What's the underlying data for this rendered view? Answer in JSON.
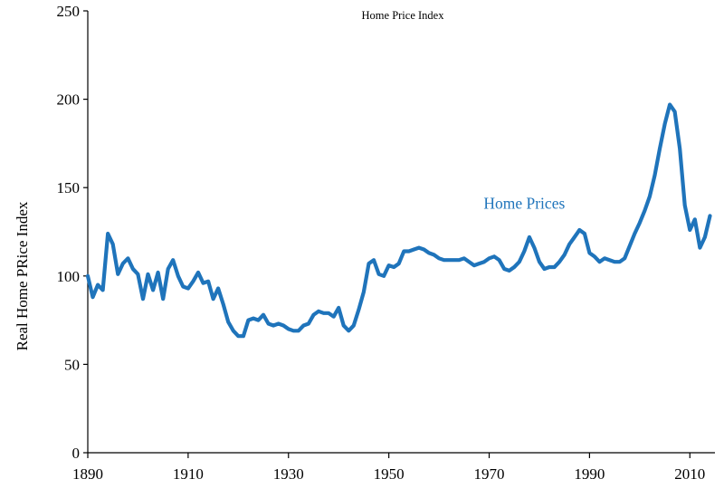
{
  "chart_data": {
    "type": "line",
    "title": "Home Price Index",
    "xlabel": "",
    "ylabel": "Real Home PRice Index",
    "xlim": [
      1890,
      2015
    ],
    "ylim": [
      0,
      250
    ],
    "xticks": [
      1890,
      1910,
      1930,
      1950,
      1970,
      1990,
      2010
    ],
    "yticks": [
      0,
      50,
      100,
      150,
      200,
      250
    ],
    "grid": false,
    "legend": "none",
    "annotations": [
      {
        "text": "Home Prices",
        "x": 1977,
        "y": 138
      }
    ],
    "colors": {
      "series": "#1f74bb",
      "axis": "#000000"
    },
    "series": [
      {
        "name": "Home Prices",
        "x": [
          1890,
          1891,
          1892,
          1893,
          1894,
          1895,
          1896,
          1897,
          1898,
          1899,
          1900,
          1901,
          1902,
          1903,
          1904,
          1905,
          1906,
          1907,
          1908,
          1909,
          1910,
          1911,
          1912,
          1913,
          1914,
          1915,
          1916,
          1917,
          1918,
          1919,
          1920,
          1921,
          1922,
          1923,
          1924,
          1925,
          1926,
          1927,
          1928,
          1929,
          1930,
          1931,
          1932,
          1933,
          1934,
          1935,
          1936,
          1937,
          1938,
          1939,
          1940,
          1941,
          1942,
          1943,
          1944,
          1945,
          1946,
          1947,
          1948,
          1949,
          1950,
          1951,
          1952,
          1953,
          1954,
          1955,
          1956,
          1957,
          1958,
          1959,
          1960,
          1961,
          1962,
          1963,
          1964,
          1965,
          1966,
          1967,
          1968,
          1969,
          1970,
          1971,
          1972,
          1973,
          1974,
          1975,
          1976,
          1977,
          1978,
          1979,
          1980,
          1981,
          1982,
          1983,
          1984,
          1985,
          1986,
          1987,
          1988,
          1989,
          1990,
          1991,
          1992,
          1993,
          1994,
          1995,
          1996,
          1997,
          1998,
          1999,
          2000,
          2001,
          2002,
          2003,
          2004,
          2005,
          2006,
          2007,
          2008,
          2009,
          2010,
          2011,
          2012,
          2013,
          2014
        ],
        "values": [
          100,
          88,
          95,
          92,
          124,
          118,
          101,
          107,
          110,
          104,
          101,
          87,
          101,
          92,
          102,
          87,
          104,
          109,
          100,
          94,
          93,
          97,
          102,
          96,
          97,
          87,
          93,
          84,
          74,
          69,
          66,
          66,
          75,
          76,
          75,
          78,
          73,
          72,
          73,
          72,
          70,
          69,
          69,
          72,
          73,
          78,
          80,
          79,
          79,
          77,
          82,
          72,
          69,
          72,
          81,
          91,
          107,
          109,
          101,
          100,
          106,
          105,
          107,
          114,
          114,
          115,
          116,
          115,
          113,
          112,
          110,
          109,
          109,
          109,
          109,
          110,
          108,
          106,
          107,
          108,
          110,
          111,
          109,
          104,
          103,
          105,
          108,
          114,
          122,
          116,
          108,
          104,
          105,
          105,
          108,
          112,
          118,
          122,
          126,
          124,
          113,
          111,
          108,
          110,
          109,
          108,
          108,
          110,
          117,
          124,
          130,
          137,
          145,
          157,
          172,
          186,
          197,
          193,
          172,
          140,
          126,
          132,
          116,
          122,
          134
        ]
      }
    ]
  }
}
